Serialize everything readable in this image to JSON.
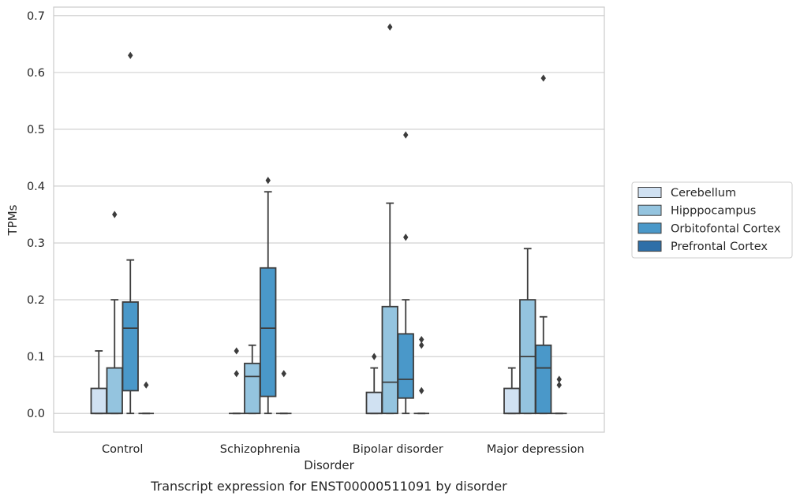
{
  "chart_data": {
    "type": "box",
    "xlabel": "Disorder",
    "ylabel": "TPMs",
    "caption": "Transcript expression for ENST00000511091 by disorder",
    "ylim": [
      -0.033,
      0.715
    ],
    "yticks": [
      0.0,
      0.1,
      0.2,
      0.3,
      0.4,
      0.5,
      0.6,
      0.7
    ],
    "ytick_labels": [
      "0.0",
      "0.1",
      "0.2",
      "0.3",
      "0.4",
      "0.5",
      "0.6",
      "0.7"
    ],
    "grid": "horizontal",
    "legend_position": "right",
    "categories": [
      "Control",
      "Schizophrenia",
      "Bipolar disorder",
      "Major depression"
    ],
    "series": [
      {
        "name": "Cerebellum",
        "color": "#d0e1f2",
        "boxes": [
          {
            "whislo": 0.0,
            "q1": 0.0,
            "med": 0.0,
            "q3": 0.044,
            "whishi": 0.11,
            "fliers": []
          },
          {
            "whislo": 0.0,
            "q1": 0.0,
            "med": 0.0,
            "q3": 0.0,
            "whishi": 0.0,
            "fliers": [
              0.07,
              0.11
            ]
          },
          {
            "whislo": 0.0,
            "q1": 0.0,
            "med": 0.0,
            "q3": 0.037,
            "whishi": 0.08,
            "fliers": [
              0.1
            ]
          },
          {
            "whislo": 0.0,
            "q1": 0.0,
            "med": 0.0,
            "q3": 0.044,
            "whishi": 0.08,
            "fliers": []
          }
        ]
      },
      {
        "name": "Hipppocampus",
        "color": "#94c4df",
        "boxes": [
          {
            "whislo": 0.0,
            "q1": 0.0,
            "med": 0.0,
            "q3": 0.08,
            "whishi": 0.2,
            "fliers": [
              0.35
            ]
          },
          {
            "whislo": 0.0,
            "q1": 0.0,
            "med": 0.065,
            "q3": 0.088,
            "whishi": 0.12,
            "fliers": []
          },
          {
            "whislo": 0.0,
            "q1": 0.0,
            "med": 0.055,
            "q3": 0.188,
            "whishi": 0.37,
            "fliers": [
              0.68
            ]
          },
          {
            "whislo": 0.0,
            "q1": 0.0,
            "med": 0.1,
            "q3": 0.2,
            "whishi": 0.29,
            "fliers": []
          }
        ]
      },
      {
        "name": "Orbitofontal Cortex",
        "color": "#4a98c9",
        "boxes": [
          {
            "whislo": 0.0,
            "q1": 0.04,
            "med": 0.15,
            "q3": 0.196,
            "whishi": 0.27,
            "fliers": [
              0.63
            ]
          },
          {
            "whislo": 0.0,
            "q1": 0.03,
            "med": 0.15,
            "q3": 0.256,
            "whishi": 0.39,
            "fliers": [
              0.41
            ]
          },
          {
            "whislo": 0.0,
            "q1": 0.027,
            "med": 0.06,
            "q3": 0.14,
            "whishi": 0.2,
            "fliers": [
              0.31,
              0.49
            ]
          },
          {
            "whislo": 0.0,
            "q1": 0.0,
            "med": 0.08,
            "q3": 0.12,
            "whishi": 0.17,
            "fliers": [
              0.59
            ]
          }
        ]
      },
      {
        "name": "Prefrontal Cortex",
        "color": "#2e6fa8",
        "boxes": [
          {
            "whislo": 0.0,
            "q1": 0.0,
            "med": 0.0,
            "q3": 0.0,
            "whishi": 0.0,
            "fliers": [
              0.05
            ]
          },
          {
            "whislo": 0.0,
            "q1": 0.0,
            "med": 0.0,
            "q3": 0.0,
            "whishi": 0.0,
            "fliers": [
              0.07
            ]
          },
          {
            "whislo": 0.0,
            "q1": 0.0,
            "med": 0.0,
            "q3": 0.0,
            "whishi": 0.0,
            "fliers": [
              0.04,
              0.12,
              0.13
            ]
          },
          {
            "whislo": 0.0,
            "q1": 0.0,
            "med": 0.0,
            "q3": 0.0,
            "whishi": 0.0,
            "fliers": [
              0.05,
              0.06
            ]
          }
        ]
      }
    ]
  }
}
